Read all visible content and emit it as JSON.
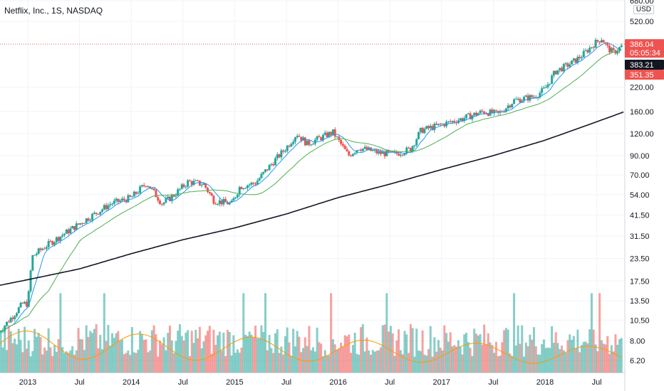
{
  "header": {
    "title": "Netflix, Inc., 1S, NASDAQ",
    "currency": "USD"
  },
  "price_tags": [
    {
      "label": "386.04",
      "sub": "05:05:34",
      "price": 386.04,
      "bg": "#ef5350",
      "fg": "#ffffff"
    },
    {
      "label": "383.21",
      "price": 383.21,
      "bg": "#131722",
      "fg": "#ffffff"
    },
    {
      "label": "351.35",
      "price": 351.35,
      "bg": "#ef5350",
      "fg": "#ffffff"
    }
  ],
  "colors": {
    "up": "#26a69a",
    "down": "#ef5350",
    "ma_fast": "#2196f3",
    "ma_mid": "#4caf50",
    "ma_slow": "#131722",
    "vol_ma": "#ff9800",
    "grid": "#f0f3fa",
    "price_line": "#ef5350"
  },
  "chart_data": {
    "type": "candlestick",
    "title": "Netflix, Inc., 1S, NASDAQ",
    "y_scale": "log",
    "y_ticks": [
      6.2,
      8.0,
      10.5,
      13.5,
      17.5,
      23.5,
      31.5,
      41.5,
      54.0,
      70.0,
      90.0,
      120.0,
      160.0,
      220.0,
      520.0,
      680.0
    ],
    "x_ticks": [
      {
        "label": "2013",
        "t": 2013.0
      },
      {
        "label": "Jul",
        "t": 2013.5
      },
      {
        "label": "2014",
        "t": 2014.0
      },
      {
        "label": "Jul",
        "t": 2014.5
      },
      {
        "label": "2015",
        "t": 2015.0
      },
      {
        "label": "Jul",
        "t": 2015.5
      },
      {
        "label": "2016",
        "t": 2016.0
      },
      {
        "label": "Jul",
        "t": 2016.5
      },
      {
        "label": "2017",
        "t": 2017.0
      },
      {
        "label": "Jul",
        "t": 2017.5
      },
      {
        "label": "2018",
        "t": 2018.0
      },
      {
        "label": "Jul",
        "t": 2018.5
      }
    ],
    "x_range": [
      2012.72,
      2018.77
    ],
    "price_anchors": [
      [
        2012.72,
        9.0
      ],
      [
        2012.85,
        11.0
      ],
      [
        2012.95,
        13.0
      ],
      [
        2013.0,
        13.0
      ],
      [
        2013.04,
        24.0
      ],
      [
        2013.15,
        27.0
      ],
      [
        2013.3,
        31.0
      ],
      [
        2013.5,
        37.0
      ],
      [
        2013.8,
        48.0
      ],
      [
        2014.0,
        52.0
      ],
      [
        2014.15,
        63.0
      ],
      [
        2014.3,
        48.0
      ],
      [
        2014.4,
        53.0
      ],
      [
        2014.55,
        64.0
      ],
      [
        2014.7,
        62.0
      ],
      [
        2014.8,
        50.0
      ],
      [
        2014.97,
        48.0
      ],
      [
        2015.05,
        60.0
      ],
      [
        2015.2,
        63.0
      ],
      [
        2015.35,
        80.0
      ],
      [
        2015.5,
        100.0
      ],
      [
        2015.6,
        120.0
      ],
      [
        2015.7,
        105.0
      ],
      [
        2015.85,
        115.0
      ],
      [
        2015.95,
        122.0
      ],
      [
        2016.1,
        90.0
      ],
      [
        2016.2,
        100.0
      ],
      [
        2016.4,
        93.0
      ],
      [
        2016.55,
        92.0
      ],
      [
        2016.7,
        98.0
      ],
      [
        2016.8,
        125.0
      ],
      [
        2017.0,
        135.0
      ],
      [
        2017.2,
        146.0
      ],
      [
        2017.4,
        160.0
      ],
      [
        2017.55,
        155.0
      ],
      [
        2017.7,
        185.0
      ],
      [
        2017.9,
        195.0
      ],
      [
        2018.0,
        215.0
      ],
      [
        2018.1,
        270.0
      ],
      [
        2018.25,
        300.0
      ],
      [
        2018.35,
        330.0
      ],
      [
        2018.48,
        390.0
      ],
      [
        2018.55,
        418.0
      ],
      [
        2018.6,
        370.0
      ],
      [
        2018.66,
        345.0
      ],
      [
        2018.77,
        386.0
      ]
    ],
    "ma_slow_anchors": [
      [
        2012.72,
        16.5
      ],
      [
        2013.0,
        17.8
      ],
      [
        2013.5,
        20.5
      ],
      [
        2014.0,
        25.0
      ],
      [
        2014.5,
        30.0
      ],
      [
        2015.0,
        35.0
      ],
      [
        2015.5,
        42.0
      ],
      [
        2016.0,
        52.0
      ],
      [
        2016.5,
        62.0
      ],
      [
        2017.0,
        75.0
      ],
      [
        2017.5,
        90.0
      ],
      [
        2018.0,
        110.0
      ],
      [
        2018.5,
        140.0
      ],
      [
        2018.77,
        160.0
      ]
    ],
    "volume": {
      "max": 100,
      "ma_level": 0.32
    }
  }
}
